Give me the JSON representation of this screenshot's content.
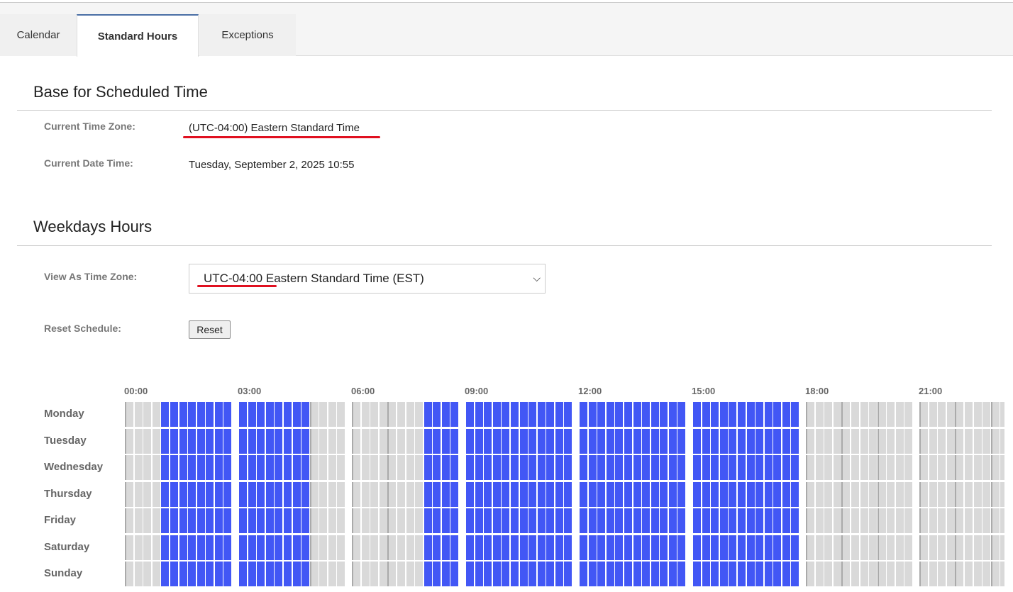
{
  "tabs": [
    {
      "label": "Calendar",
      "active": false
    },
    {
      "label": "Standard Hours",
      "active": true
    },
    {
      "label": "Exceptions",
      "active": false
    }
  ],
  "base": {
    "title": "Base for Scheduled Time",
    "tz_label": "Current Time Zone:",
    "tz_value": "(UTC-04:00) Eastern Standard Time",
    "dt_label": "Current Date Time:",
    "dt_value": "Tuesday, September 2, 2025 10:55"
  },
  "weekdays": {
    "title": "Weekdays Hours",
    "view_label": "View As Time Zone:",
    "view_value": "UTC-04:00 Eastern Standard Time (EST)",
    "reset_label": "Reset Schedule:",
    "reset_button": "Reset"
  },
  "colors": {
    "active": "#4257f5",
    "inactive": "#d9d9d9",
    "annotation": "#e01020"
  },
  "schedule": {
    "hour_labels": [
      "00:00",
      "03:00",
      "06:00",
      "09:00",
      "12:00",
      "15:00",
      "18:00",
      "21:00"
    ],
    "days": [
      {
        "name": "Monday",
        "active_hours": [
          1,
          2,
          3,
          4,
          8,
          9,
          10,
          11,
          12,
          13,
          14,
          15,
          16,
          17
        ]
      },
      {
        "name": "Tuesday",
        "active_hours": [
          1,
          2,
          3,
          4,
          8,
          9,
          10,
          11,
          12,
          13,
          14,
          15,
          16,
          17
        ]
      },
      {
        "name": "Wednesday",
        "active_hours": [
          1,
          2,
          3,
          4,
          8,
          9,
          10,
          11,
          12,
          13,
          14,
          15,
          16,
          17
        ]
      },
      {
        "name": "Thursday",
        "active_hours": [
          1,
          2,
          3,
          4,
          8,
          9,
          10,
          11,
          12,
          13,
          14,
          15,
          16,
          17
        ]
      },
      {
        "name": "Friday",
        "active_hours": [
          1,
          2,
          3,
          4,
          8,
          9,
          10,
          11,
          12,
          13,
          14,
          15,
          16,
          17
        ]
      },
      {
        "name": "Saturday",
        "active_hours": [
          1,
          2,
          3,
          4,
          8,
          9,
          10,
          11,
          12,
          13,
          14,
          15,
          16,
          17
        ]
      },
      {
        "name": "Sunday",
        "active_hours": [
          1,
          2,
          3,
          4,
          8,
          9,
          10,
          11,
          12,
          13,
          14,
          15,
          16,
          17
        ]
      }
    ]
  }
}
